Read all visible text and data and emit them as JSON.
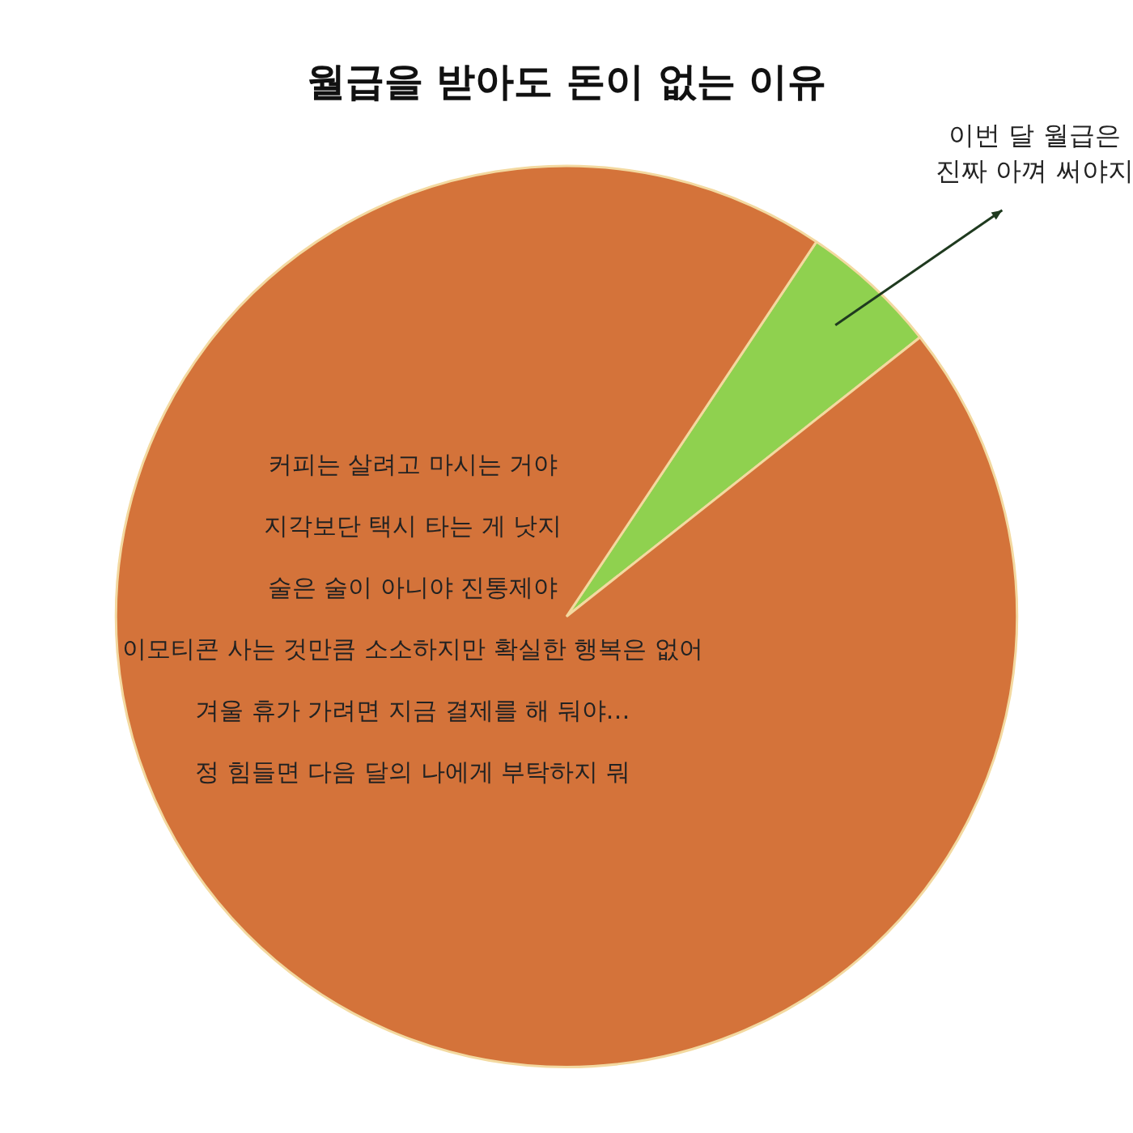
{
  "chart_data": {
    "type": "pie",
    "title": "월급을 받아도 돈이 없는 이유",
    "categories": [
      "이번 달 월급은\n진짜 아껴 써야지",
      "커피는 살려고 마시는 거야\n지각보단 택시 타는 게 낫지\n술은 술이 아니야 진통제야\n이모티콘 사는 것만큼 소소하지만 확실한 행복은 없어\n겨울 휴가 가려면 지금 결제를 해 둬야…\n정 힘들면 다음 달의 나에게 부탁하지 뭐"
    ],
    "values": [
      5,
      95
    ],
    "colors": [
      "#8fd14f",
      "#d4733a"
    ],
    "legend": false
  }
}
